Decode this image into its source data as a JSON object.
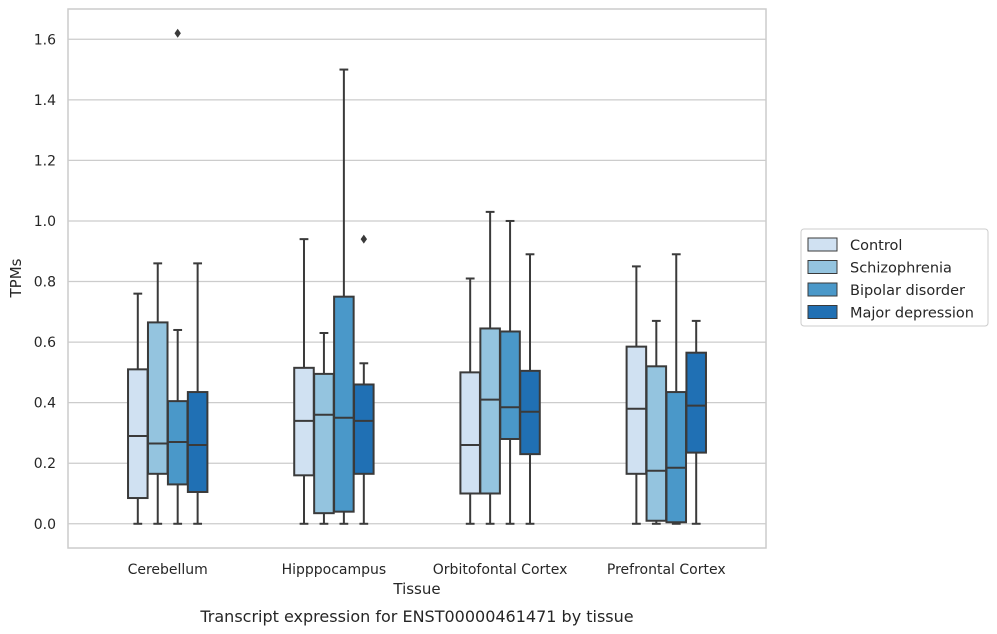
{
  "chart_data": {
    "type": "box",
    "title": "",
    "caption": "Transcript expression for ENST00000461471 by tissue",
    "xlabel": "Tissue",
    "ylabel": "TPMs",
    "ylim": [
      -0.08,
      1.7
    ],
    "yticks": [
      "0.0",
      "0.2",
      "0.4",
      "0.6",
      "0.8",
      "1.0",
      "1.2",
      "1.4",
      "1.6"
    ],
    "ytick_values": [
      0,
      0.2,
      0.4,
      0.6,
      0.8,
      1.0,
      1.2,
      1.4,
      1.6
    ],
    "grid": "horizontal",
    "legend_placement": "right",
    "categories": [
      "Cerebellum",
      "Hipppocampus",
      "Orbitofontal Cortex",
      "Prefrontal Cortex"
    ],
    "series": [
      {
        "name": "Control",
        "color": "#d0e1f2",
        "boxes": [
          {
            "min": 0.0,
            "q1": 0.085,
            "median": 0.29,
            "q3": 0.51,
            "max": 0.76,
            "outliers": []
          },
          {
            "min": 0.0,
            "q1": 0.16,
            "median": 0.34,
            "q3": 0.515,
            "max": 0.94,
            "outliers": []
          },
          {
            "min": 0.0,
            "q1": 0.1,
            "median": 0.26,
            "q3": 0.5,
            "max": 0.81,
            "outliers": []
          },
          {
            "min": 0.0,
            "q1": 0.165,
            "median": 0.38,
            "q3": 0.585,
            "max": 0.85,
            "outliers": []
          }
        ]
      },
      {
        "name": "Schizophrenia",
        "color": "#94c4df",
        "boxes": [
          {
            "min": 0.0,
            "q1": 0.165,
            "median": 0.265,
            "q3": 0.665,
            "max": 0.86,
            "outliers": []
          },
          {
            "min": 0.0,
            "q1": 0.035,
            "median": 0.36,
            "q3": 0.495,
            "max": 0.63,
            "outliers": []
          },
          {
            "min": 0.0,
            "q1": 0.1,
            "median": 0.41,
            "q3": 0.645,
            "max": 1.03,
            "outliers": []
          },
          {
            "min": 0.0,
            "q1": 0.01,
            "median": 0.175,
            "q3": 0.52,
            "max": 0.67,
            "outliers": []
          }
        ]
      },
      {
        "name": "Bipolar disorder",
        "color": "#4a98c9",
        "boxes": [
          {
            "min": 0.0,
            "q1": 0.13,
            "median": 0.27,
            "q3": 0.405,
            "max": 0.64,
            "outliers": [
              1.62
            ]
          },
          {
            "min": 0.0,
            "q1": 0.04,
            "median": 0.35,
            "q3": 0.75,
            "max": 1.5,
            "outliers": []
          },
          {
            "min": 0.0,
            "q1": 0.28,
            "median": 0.385,
            "q3": 0.635,
            "max": 1.0,
            "outliers": []
          },
          {
            "min": 0.0,
            "q1": 0.005,
            "median": 0.185,
            "q3": 0.435,
            "max": 0.89,
            "outliers": []
          }
        ]
      },
      {
        "name": "Major depression",
        "color": "#2070b4",
        "boxes": [
          {
            "min": 0.0,
            "q1": 0.105,
            "median": 0.26,
            "q3": 0.435,
            "max": 0.86,
            "outliers": []
          },
          {
            "min": 0.0,
            "q1": 0.165,
            "median": 0.34,
            "q3": 0.46,
            "max": 0.53,
            "outliers": [
              0.94
            ]
          },
          {
            "min": 0.0,
            "q1": 0.23,
            "median": 0.37,
            "q3": 0.505,
            "max": 0.89,
            "outliers": []
          },
          {
            "min": 0.0,
            "q1": 0.235,
            "median": 0.39,
            "q3": 0.565,
            "max": 0.67,
            "outliers": []
          }
        ]
      }
    ]
  }
}
